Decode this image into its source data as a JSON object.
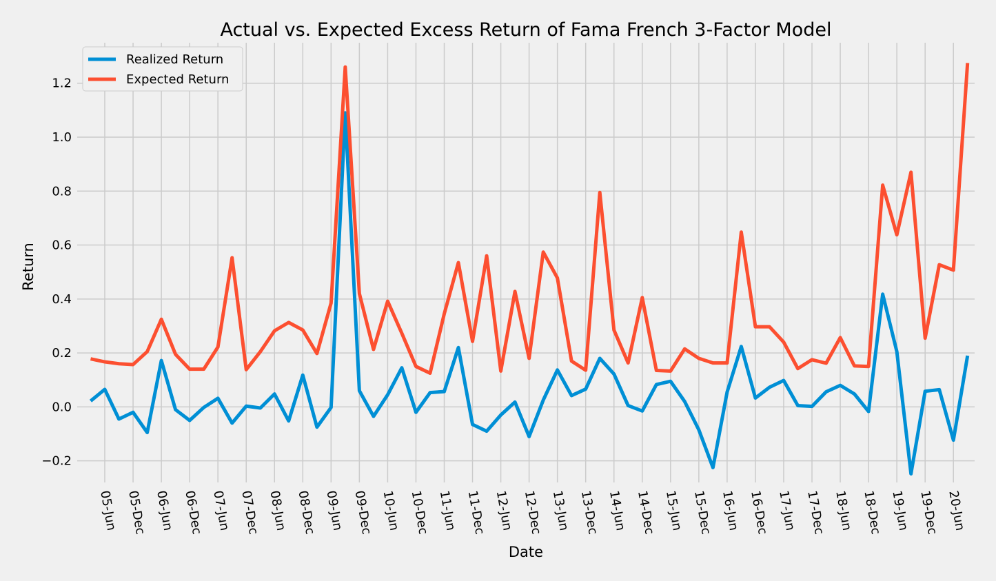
{
  "chart_data": {
    "type": "line",
    "title": "Actual vs. Expected Excess Return of Fama French 3-Factor Model",
    "xlabel": "Date",
    "ylabel": "Return",
    "ylim": [
      -0.28,
      1.35
    ],
    "yticks": [
      -0.2,
      0.0,
      0.2,
      0.4,
      0.6,
      0.8,
      1.0,
      1.2
    ],
    "ytick_labels": [
      "−0.2",
      "0.0",
      "0.2",
      "0.4",
      "0.6",
      "0.8",
      "1.0",
      "1.2"
    ],
    "xlim": [
      -0.95,
      62.5
    ],
    "xtick_positions": [
      1,
      3,
      5,
      7,
      9,
      11,
      13,
      15,
      17,
      19,
      21,
      23,
      25,
      27,
      29,
      31,
      33,
      35,
      37,
      39,
      41,
      43,
      45,
      47,
      49,
      51,
      53,
      55,
      57,
      59,
      61
    ],
    "xtick_labels": [
      "05-Jun",
      "05-Dec",
      "06-Jun",
      "06-Dec",
      "07-Jun",
      "07-Dec",
      "08-Jun",
      "08-Dec",
      "09-Jun",
      "09-Dec",
      "10-Jun",
      "10-Dec",
      "11-Jun",
      "11-Dec",
      "12-Jun",
      "12-Dec",
      "13-Jun",
      "13-Dec",
      "14-Jun",
      "14-Dec",
      "15-Jun",
      "15-Dec",
      "16-Jun",
      "16-Dec",
      "17-Jun",
      "17-Dec",
      "18-Jun",
      "18-Dec",
      "19-Jun",
      "19-Dec",
      "20-Jun"
    ],
    "grid": true,
    "legend_position": "top-left",
    "series": [
      {
        "name": "Realized Return",
        "color": "#008fd5",
        "values": [
          0.022,
          0.065,
          -0.045,
          -0.02,
          -0.095,
          0.172,
          -0.01,
          -0.05,
          -0.002,
          0.032,
          -0.06,
          0.003,
          -0.004,
          0.048,
          -0.052,
          0.118,
          -0.075,
          -0.002,
          1.09,
          0.06,
          -0.035,
          0.045,
          0.145,
          -0.02,
          0.053,
          0.057,
          0.22,
          -0.065,
          -0.09,
          -0.03,
          0.018,
          -0.11,
          0.025,
          0.137,
          0.042,
          0.066,
          0.18,
          0.122,
          0.005,
          -0.015,
          0.083,
          0.095,
          0.02,
          -0.085,
          -0.225,
          0.055,
          0.224,
          0.033,
          0.073,
          0.098,
          0.005,
          0.002,
          0.056,
          0.08,
          0.048,
          -0.017,
          0.418,
          0.205,
          -0.248,
          0.058,
          0.064,
          -0.123,
          0.19
        ]
      },
      {
        "name": "Expected Return",
        "color": "#fc4f30",
        "values": [
          0.178,
          0.167,
          0.16,
          0.157,
          0.205,
          0.325,
          0.195,
          0.14,
          0.14,
          0.222,
          0.553,
          0.138,
          0.205,
          0.282,
          0.313,
          0.285,
          0.198,
          0.385,
          1.26,
          0.42,
          0.213,
          0.392,
          0.273,
          0.15,
          0.125,
          0.345,
          0.535,
          0.243,
          0.56,
          0.133,
          0.428,
          0.18,
          0.574,
          0.478,
          0.17,
          0.136,
          0.795,
          0.285,
          0.163,
          0.405,
          0.135,
          0.133,
          0.215,
          0.18,
          0.163,
          0.163,
          0.648,
          0.297,
          0.297,
          0.24,
          0.142,
          0.175,
          0.162,
          0.257,
          0.152,
          0.15,
          0.822,
          0.638,
          0.87,
          0.255,
          0.527,
          0.507,
          1.275
        ]
      }
    ]
  }
}
